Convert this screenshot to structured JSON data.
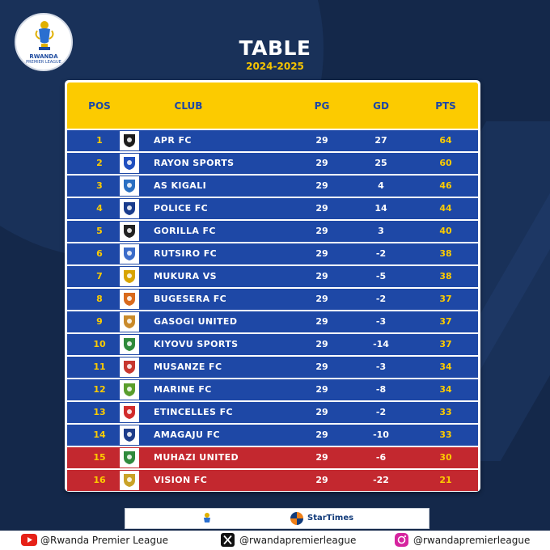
{
  "logo": {
    "line1": "RWANDA",
    "line2": "PREMIER LEAGUE"
  },
  "header": {
    "title": "TABLE",
    "season": "2024-2025"
  },
  "table": {
    "columns": {
      "pos": "POS",
      "club": "CLUB",
      "pg": "PG",
      "gd": "GD",
      "pts": "PTS"
    },
    "rows": [
      {
        "pos": "1",
        "club": "APR FC",
        "pg": "29",
        "gd": "27",
        "pts": "64",
        "relegation": false,
        "crest_color": "#1c1c1c"
      },
      {
        "pos": "2",
        "club": "RAYON SPORTS",
        "pg": "29",
        "gd": "25",
        "pts": "60",
        "relegation": false,
        "crest_color": "#1f4fbf"
      },
      {
        "pos": "3",
        "club": "AS KIGALI",
        "pg": "29",
        "gd": "4",
        "pts": "46",
        "relegation": false,
        "crest_color": "#2a6fc2"
      },
      {
        "pos": "4",
        "club": "POLICE FC",
        "pg": "29",
        "gd": "14",
        "pts": "44",
        "relegation": false,
        "crest_color": "#1a3c8c"
      },
      {
        "pos": "5",
        "club": "GORILLA FC",
        "pg": "29",
        "gd": "3",
        "pts": "40",
        "relegation": false,
        "crest_color": "#222222"
      },
      {
        "pos": "6",
        "club": "RUTSIRO FC",
        "pg": "29",
        "gd": "-2",
        "pts": "38",
        "relegation": false,
        "crest_color": "#3b6cc9"
      },
      {
        "pos": "7",
        "club": "MUKURA VS",
        "pg": "29",
        "gd": "-5",
        "pts": "38",
        "relegation": false,
        "crest_color": "#d8a400"
      },
      {
        "pos": "8",
        "club": "BUGESERA FC",
        "pg": "29",
        "gd": "-2",
        "pts": "37",
        "relegation": false,
        "crest_color": "#d96a1c"
      },
      {
        "pos": "9",
        "club": "GASOGI UNITED",
        "pg": "29",
        "gd": "-3",
        "pts": "37",
        "relegation": false,
        "crest_color": "#c98a2a"
      },
      {
        "pos": "10",
        "club": "KIYOVU SPORTS",
        "pg": "29",
        "gd": "-14",
        "pts": "37",
        "relegation": false,
        "crest_color": "#2e8a3a"
      },
      {
        "pos": "11",
        "club": "MUSANZE FC",
        "pg": "29",
        "gd": "-3",
        "pts": "34",
        "relegation": false,
        "crest_color": "#c7372f"
      },
      {
        "pos": "12",
        "club": "MARINE FC",
        "pg": "29",
        "gd": "-8",
        "pts": "34",
        "relegation": false,
        "crest_color": "#5a9e2c"
      },
      {
        "pos": "13",
        "club": "ETINCELLES FC",
        "pg": "29",
        "gd": "-2",
        "pts": "33",
        "relegation": false,
        "crest_color": "#d12b2b"
      },
      {
        "pos": "14",
        "club": "AMAGAJU FC",
        "pg": "29",
        "gd": "-10",
        "pts": "33",
        "relegation": false,
        "crest_color": "#1e3d8a"
      },
      {
        "pos": "15",
        "club": "MUHAZI UNITED",
        "pg": "29",
        "gd": "-6",
        "pts": "30",
        "relegation": true,
        "crest_color": "#2f8a3c"
      },
      {
        "pos": "16",
        "club": "VISION FC",
        "pg": "29",
        "gd": "-22",
        "pts": "21",
        "relegation": true,
        "crest_color": "#c9a227"
      }
    ]
  },
  "sponsor": {
    "name": "StarTimes"
  },
  "social": {
    "youtube": "@Rwanda Premier League",
    "x": "@rwandapremierleague",
    "instagram": "@rwandapremierleague"
  },
  "colors": {
    "background": "#14284a",
    "header_yellow": "#fccb00",
    "row_blue": "#1e48a6",
    "relegation_red": "#c3282f"
  }
}
